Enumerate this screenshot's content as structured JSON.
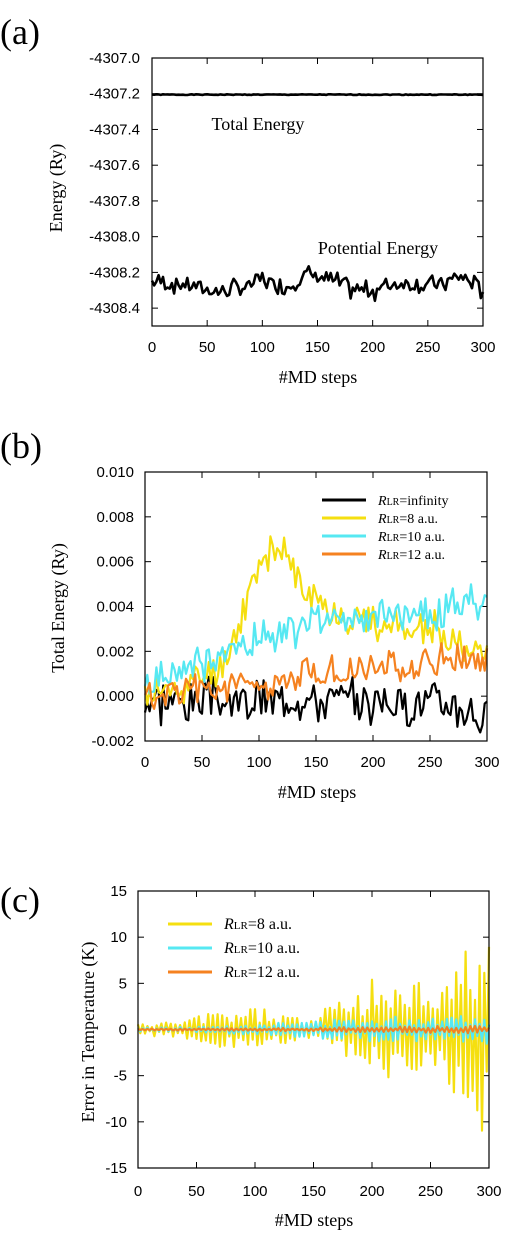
{
  "chart_data": [
    {
      "panel": "(a)",
      "type": "line",
      "xlabel": "#MD steps",
      "ylabel": "Energy (Ry)",
      "xlim": [
        0,
        300
      ],
      "ylim": [
        -4308.5,
        -4307.0
      ],
      "xticks": [
        0,
        50,
        100,
        150,
        200,
        250,
        300
      ],
      "yticks": [
        "-4307.0",
        "-4307.2",
        "-4307.4",
        "-4307.6",
        "-4307.8",
        "-4308.0",
        "-4308.2",
        "-4308.4"
      ],
      "annotations": [
        "Total Energy",
        "Potential Energy"
      ],
      "series": [
        {
          "color": "#000000",
          "kind": "flat",
          "value": -4307.205,
          "amp": 0.002
        },
        {
          "color": "#000000",
          "kind": "noisy",
          "base": -4308.27,
          "amp": 0.045,
          "seed": 7,
          "x": [
            0,
            20,
            40,
            60,
            80,
            100,
            120,
            140,
            160,
            180,
            200,
            220,
            240,
            260,
            280,
            300
          ],
          "y": [
            -4308.25,
            -4308.26,
            -4308.28,
            -4308.31,
            -4308.29,
            -4308.24,
            -4308.29,
            -4308.21,
            -4308.24,
            -4308.29,
            -4308.3,
            -4308.26,
            -4308.27,
            -4308.27,
            -4308.22,
            -4308.3
          ]
        }
      ],
      "grid": false
    },
    {
      "panel": "(b)",
      "type": "line",
      "xlabel": "#MD steps",
      "ylabel": "Total Energy (Ry)",
      "xlim": [
        0,
        300
      ],
      "ylim": [
        -0.002,
        0.01
      ],
      "xticks": [
        0,
        50,
        100,
        150,
        200,
        250,
        300
      ],
      "yticks": [
        "0.010",
        "0.008",
        "0.006",
        "0.004",
        "0.002",
        "0.000",
        "-0.002"
      ],
      "legend_position": "top-right",
      "series": [
        {
          "name": "=infinity",
          "name_prefix": "R",
          "name_sub": "LR",
          "color": "#000000",
          "kind": "noisy",
          "amp": 0.0009,
          "seed": 3,
          "x": [
            0,
            50,
            100,
            150,
            200,
            250,
            280,
            300
          ],
          "y": [
            0.0,
            -0.0003,
            -0.0002,
            -0.0001,
            -0.0003,
            -0.0002,
            -0.0004,
            -0.0012
          ]
        },
        {
          "name": "=8 a.u.",
          "name_prefix": "R",
          "name_sub": "LR",
          "color": "#f5df10",
          "kind": "noisy",
          "amp": 0.0007,
          "seed": 11,
          "x": [
            0,
            40,
            70,
            90,
            105,
            115,
            125,
            140,
            160,
            200,
            250,
            300
          ],
          "y": [
            0.0,
            0.0005,
            0.0015,
            0.0045,
            0.0065,
            0.0062,
            0.0064,
            0.0045,
            0.0039,
            0.0033,
            0.0029,
            0.0018
          ]
        },
        {
          "name": "=10 a.u.",
          "name_prefix": "R",
          "name_sub": "LR",
          "color": "#56e8f2",
          "kind": "noisy",
          "amp": 0.0007,
          "seed": 19,
          "x": [
            0,
            30,
            60,
            100,
            150,
            200,
            250,
            300
          ],
          "y": [
            0.0003,
            0.0012,
            0.0015,
            0.0027,
            0.0033,
            0.0035,
            0.0038,
            0.0042
          ]
        },
        {
          "name": "=12 a.u.",
          "name_prefix": "R",
          "name_sub": "LR",
          "color": "#f58220",
          "kind": "noisy",
          "amp": 0.0006,
          "seed": 27,
          "x": [
            0,
            50,
            100,
            150,
            200,
            250,
            300
          ],
          "y": [
            0.0002,
            0.0003,
            0.0006,
            0.0009,
            0.0012,
            0.0015,
            0.0018
          ]
        }
      ],
      "grid": false
    },
    {
      "panel": "(c)",
      "type": "line",
      "xlabel": "#MD steps",
      "ylabel": "Error in Temperature (K)",
      "xlim": [
        0,
        300
      ],
      "ylim": [
        -15,
        15
      ],
      "xticks": [
        0,
        50,
        100,
        150,
        200,
        250,
        300
      ],
      "yticks": [
        "15",
        "10",
        "5",
        "0",
        "-5",
        "-10",
        "-15"
      ],
      "legend_position": "top-left",
      "series": [
        {
          "name": "=8 a.u.",
          "name_prefix": "R",
          "name_sub": "LR",
          "color": "#f5df10",
          "kind": "envelope",
          "seed": 5,
          "x": [
            0,
            40,
            60,
            100,
            150,
            170,
            200,
            220,
            260,
            280,
            290,
            300
          ],
          "amp_pts": [
            0.6,
            1.0,
            1.8,
            2.5,
            1.0,
            3.5,
            6.0,
            5.0,
            6.0,
            9.0,
            12.0,
            11.0
          ]
        },
        {
          "name": "=10 a.u.",
          "name_prefix": "R",
          "name_sub": "LR",
          "color": "#56e8f2",
          "kind": "envelope",
          "seed": 13,
          "x": [
            0,
            50,
            100,
            150,
            200,
            250,
            300
          ],
          "amp_pts": [
            0.2,
            0.3,
            0.6,
            1.0,
            1.3,
            1.6,
            2.0
          ]
        },
        {
          "name": "=12 a.u.",
          "name_prefix": "R",
          "name_sub": "LR",
          "color": "#f58220",
          "kind": "envelope",
          "seed": 21,
          "x": [
            0,
            100,
            200,
            300
          ],
          "amp_pts": [
            0.1,
            0.15,
            0.3,
            0.45
          ]
        }
      ],
      "grid": false
    }
  ]
}
